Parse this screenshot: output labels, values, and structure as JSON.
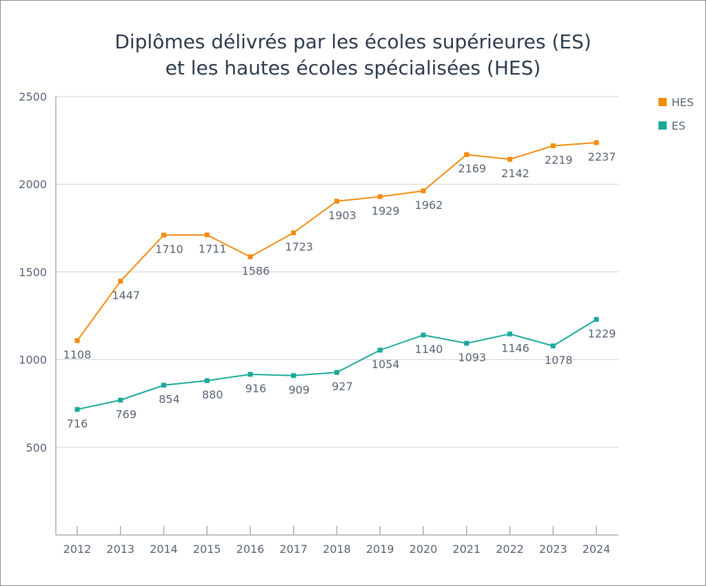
{
  "chart_data": {
    "type": "line",
    "title": [
      "Diplômes délivrés par les écoles supérieures (ES)",
      "et les hautes écoles spécialisées (HES)"
    ],
    "xlabel": "",
    "ylabel": "",
    "x": [
      2012,
      2013,
      2014,
      2015,
      2016,
      2017,
      2018,
      2019,
      2020,
      2021,
      2022,
      2023,
      2024
    ],
    "ylim": [
      0,
      2500
    ],
    "yticks": [
      500,
      1000,
      1500,
      2000,
      2500
    ],
    "grid": true,
    "legend": "top-right",
    "series": [
      {
        "name": "HES",
        "color": "#f28c0f",
        "values": [
          1108,
          1447,
          1710,
          1711,
          1586,
          1723,
          1903,
          1929,
          1962,
          2169,
          2142,
          2219,
          2237
        ]
      },
      {
        "name": "ES",
        "color": "#1aa99a",
        "values": [
          716,
          769,
          854,
          880,
          916,
          909,
          927,
          1054,
          1140,
          1093,
          1146,
          1078,
          1229
        ]
      }
    ]
  }
}
